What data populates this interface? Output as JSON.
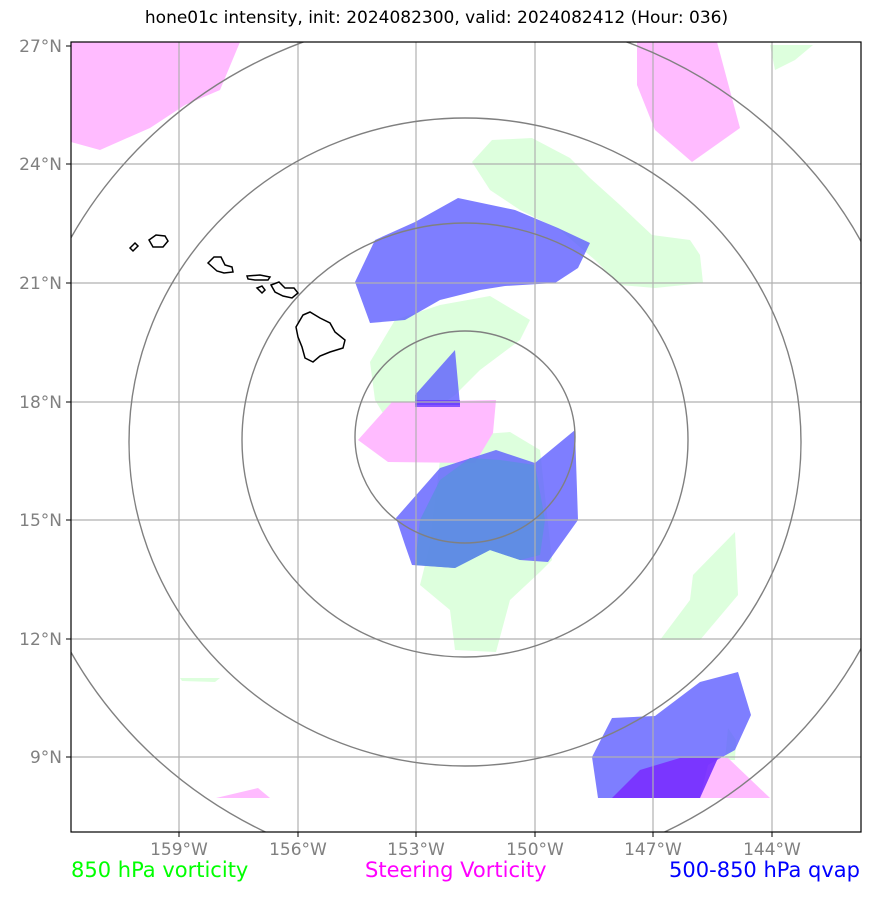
{
  "title": "hone01c intensity, init: 2024082300, valid: 2024082412 (Hour: 036)",
  "lat_labels": [
    "27°N",
    "24°N",
    "21°N",
    "18°N",
    "15°N",
    "12°N",
    "9°N"
  ],
  "lon_labels": [
    "159°W",
    "156°W",
    "153°W",
    "150°W",
    "147°W",
    "144°W"
  ],
  "legend": [
    {
      "label": "850 hPa vorticity",
      "color": "#00ff00"
    },
    {
      "label": "Steering Vorticity",
      "color": "#ff00ff"
    },
    {
      "label": "500-850 hPa qvap",
      "color": "#0000ff"
    }
  ],
  "colors": {
    "vorticity_850": "#ddffdd",
    "steering_vorticity": "#ffbbff",
    "qvap": "#7f7fff",
    "range_rings": "#808080",
    "gridlines": "#b0b0b0",
    "coastline": "#000000"
  },
  "map_extent": {
    "lon_min": -161.75,
    "lon_max": -141.75,
    "lat_min": 7.1,
    "lat_max": 27.1
  },
  "range_rings_center": {
    "lat": 17.0,
    "lon": -151.0
  }
}
